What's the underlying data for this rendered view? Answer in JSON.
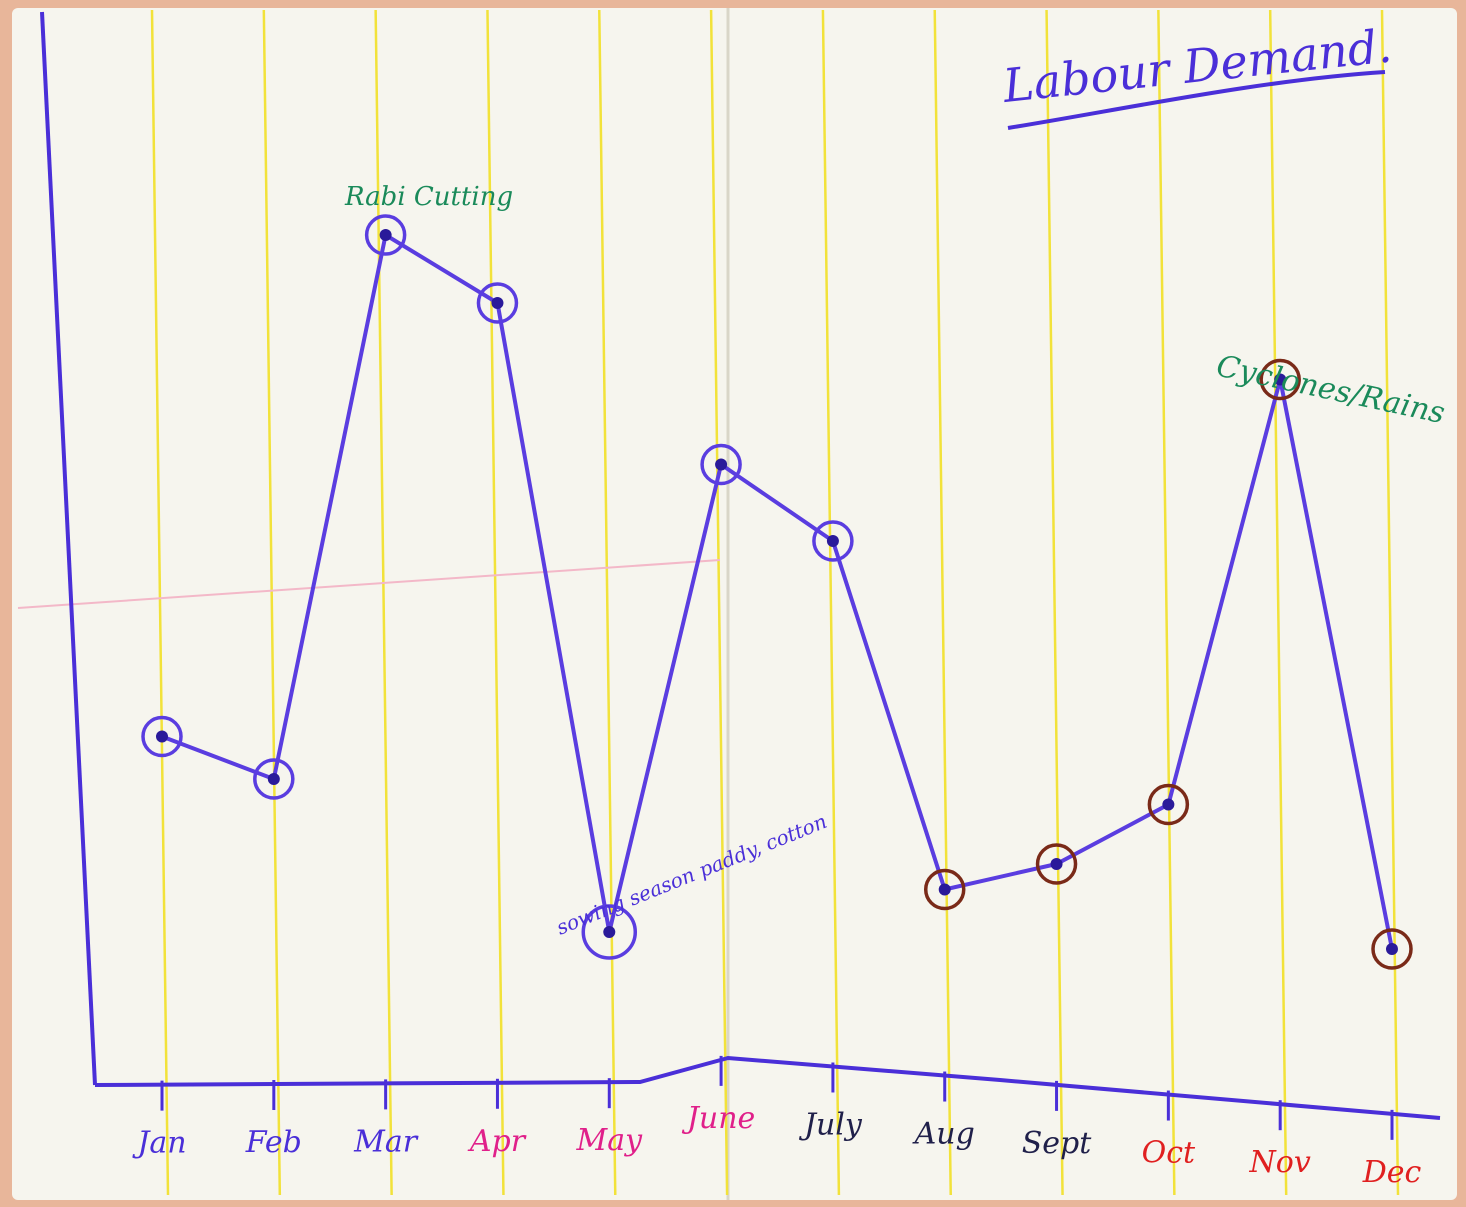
{
  "chart_data": {
    "type": "line",
    "title": "Labour Demand.",
    "categories": [
      "Jan",
      "Feb",
      "Mar",
      "Apr",
      "May",
      "June",
      "July",
      "Aug",
      "Sept",
      "Oct",
      "Nov",
      "Dec"
    ],
    "series": [
      {
        "values": [
          41,
          36,
          100,
          92,
          18,
          73,
          64,
          23,
          26,
          33,
          83,
          16
        ]
      }
    ],
    "ylim": [
      0,
      110
    ],
    "xlabel": "",
    "ylabel": "",
    "grid": true,
    "annotations": [
      {
        "text": "Rabi Cutting",
        "category": "Mar"
      },
      {
        "text": "sowing season paddy, cotton",
        "category": "May"
      },
      {
        "text": "Cyclones/Rains",
        "category": "Nov"
      }
    ],
    "tick_label_colors": [
      "#4a2fd8",
      "#4a2fd8",
      "#4a2fd8",
      "#e0208a",
      "#e0208a",
      "#e0208a",
      "#20204a",
      "#20204a",
      "#20204a",
      "#e02020",
      "#e02020",
      "#e02020"
    ],
    "marker_ring_colors": [
      "#5a3de0",
      "#5a3de0",
      "#5a3de0",
      "#5a3de0",
      "#5a3de0",
      "#5a3de0",
      "#5a3de0",
      "#7a2a18",
      "#7a2a18",
      "#7a2a18",
      "#7a2a18",
      "#7a2a18"
    ],
    "line_color": "#5a3de0",
    "annotation_color": "#1a8a5a",
    "title_color": "#4a2fd8"
  }
}
